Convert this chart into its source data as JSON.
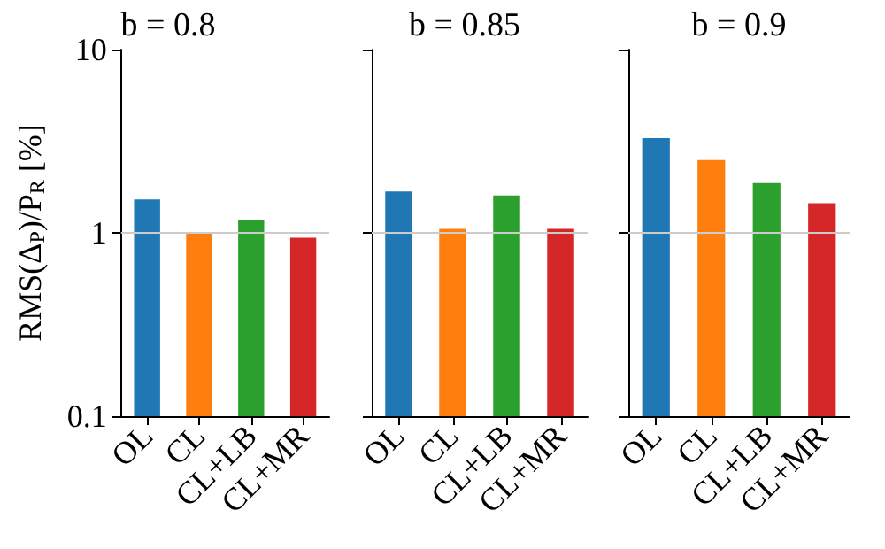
{
  "chart_data": [
    {
      "type": "bar",
      "title": "b = 0.8",
      "ylabel": "RMS(Δ$_{P}$)/P$_{R}$ [%]",
      "categories": [
        "OL",
        "CL",
        "CL+LB",
        "CL+MR"
      ],
      "values": [
        1.52,
        1.0,
        1.17,
        0.94
      ],
      "colors": [
        "#1f77b4",
        "#ff7f0e",
        "#2ca02c",
        "#d62728"
      ],
      "log": "y",
      "ylim": [
        0.1,
        10
      ],
      "yticks": [
        0.1,
        1,
        10
      ],
      "ref_lines": [
        {
          "axis": "y",
          "value": 1,
          "color": "#cccccc"
        }
      ]
    },
    {
      "type": "bar",
      "title": "b = 0.85",
      "categories": [
        "OL",
        "CL",
        "CL+LB",
        "CL+MR"
      ],
      "values": [
        1.68,
        1.05,
        1.6,
        1.05
      ],
      "colors": [
        "#1f77b4",
        "#ff7f0e",
        "#2ca02c",
        "#d62728"
      ],
      "log": "y",
      "ylim": [
        0.1,
        10
      ],
      "yticks": [
        0.1,
        1,
        10
      ],
      "tick_labels": "x",
      "ref_lines": [
        {
          "axis": "y",
          "value": 1,
          "color": "#cccccc"
        }
      ]
    },
    {
      "type": "bar",
      "title": "b = 0.9",
      "categories": [
        "OL",
        "CL",
        "CL+LB",
        "CL+MR"
      ],
      "values": [
        3.29,
        2.5,
        1.87,
        1.45
      ],
      "colors": [
        "#1f77b4",
        "#ff7f0e",
        "#2ca02c",
        "#d62728"
      ],
      "log": "y",
      "ylim": [
        0.1,
        10
      ],
      "yticks": [
        0.1,
        1,
        10
      ],
      "tick_labels": "x",
      "ref_lines": [
        {
          "axis": "y",
          "value": 1,
          "color": "#cccccc"
        }
      ]
    }
  ]
}
